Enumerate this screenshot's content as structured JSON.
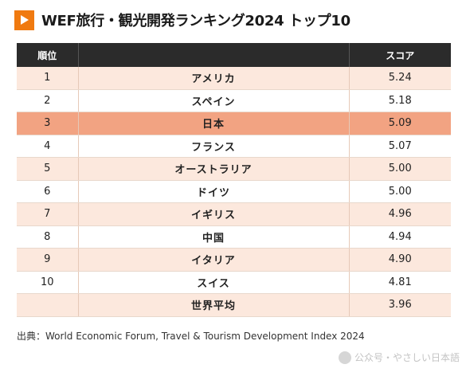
{
  "title": "WEF旅行・観光開発ランキング2024 トップ10",
  "table": {
    "headers": {
      "rank": "順位",
      "country": "",
      "score": "スコア"
    },
    "rows": [
      {
        "rank": "1",
        "country": "アメリカ",
        "score": "5.24"
      },
      {
        "rank": "2",
        "country": "スペイン",
        "score": "5.18"
      },
      {
        "rank": "3",
        "country": "日本",
        "score": "5.09"
      },
      {
        "rank": "4",
        "country": "フランス",
        "score": "5.07"
      },
      {
        "rank": "5",
        "country": "オーストラリア",
        "score": "5.00"
      },
      {
        "rank": "6",
        "country": "ドイツ",
        "score": "5.00"
      },
      {
        "rank": "7",
        "country": "イギリス",
        "score": "4.96"
      },
      {
        "rank": "8",
        "country": "中国",
        "score": "4.94"
      },
      {
        "rank": "9",
        "country": "イタリア",
        "score": "4.90"
      },
      {
        "rank": "10",
        "country": "スイス",
        "score": "4.81"
      },
      {
        "rank": "",
        "country": "世界平均",
        "score": "3.96"
      }
    ],
    "highlight_color": "#f2a382",
    "odd_row_color": "#fce8dd",
    "header_color": "#2b2b2b"
  },
  "source": "出典：World Economic Forum, Travel & Tourism Development Index 2024",
  "watermark": {
    "text": "公众号・やさしい日本語"
  },
  "colors": {
    "accent": "#f07a10"
  },
  "icons": {
    "title_icon": "play-triangle-icon"
  }
}
